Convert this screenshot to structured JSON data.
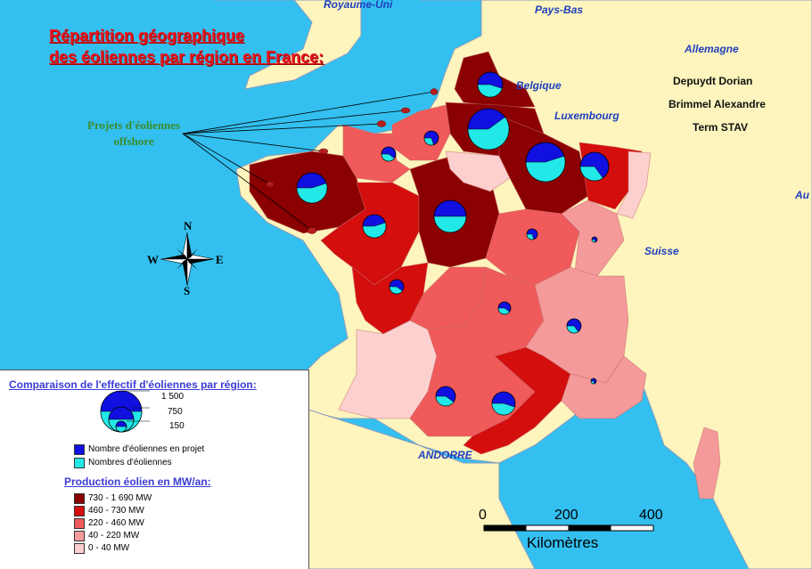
{
  "title": [
    "Répartition géographique",
    "des éoliennes par région en France:"
  ],
  "authors": [
    "Depuydt Dorian",
    "Brimmel Alexandre",
    "Term STAV"
  ],
  "offshore_label": [
    "Projets d'éoliennes",
    "offshore"
  ],
  "countries": {
    "uk": "Royaume-Uni",
    "nl": "Pays-Bas",
    "de": "Allemagne",
    "be": "Belgique",
    "lu": "Luxembourg",
    "ch": "Suisse",
    "ad": "ANDORRE",
    "au": "Au"
  },
  "compass": {
    "n": "N",
    "s": "S",
    "e": "E",
    "w": "W"
  },
  "legend": {
    "compare_title": "Comparaison de l'effectif d'éoliennes par région:",
    "sizes": [
      "1 500",
      "750",
      "150"
    ],
    "projects_label": "Nombre d'éoliennes en projet",
    "existing_label": "Nombres d'éoliennes",
    "production_title": "Production éolien en MW/an:",
    "classes": [
      {
        "label": "730 - 1 690 MW",
        "color": "#8b0000"
      },
      {
        "label": "460 - 730 MW",
        "color": "#d40d0d"
      },
      {
        "label": "220 - 460 MW",
        "color": "#f05a5a"
      },
      {
        "label": "40 - 220 MW",
        "color": "#f59a9a"
      },
      {
        "label": "0 - 40 MW",
        "color": "#fdd0d0"
      }
    ]
  },
  "scale": {
    "ticks": [
      "0",
      "200",
      "400"
    ],
    "unit": "Kilomètres"
  },
  "colors": {
    "sea": "#33c0f0",
    "land": "#fdf5bd",
    "project": "#1010e0",
    "existing": "#22e8e8",
    "border": "#8a9bbd"
  }
}
